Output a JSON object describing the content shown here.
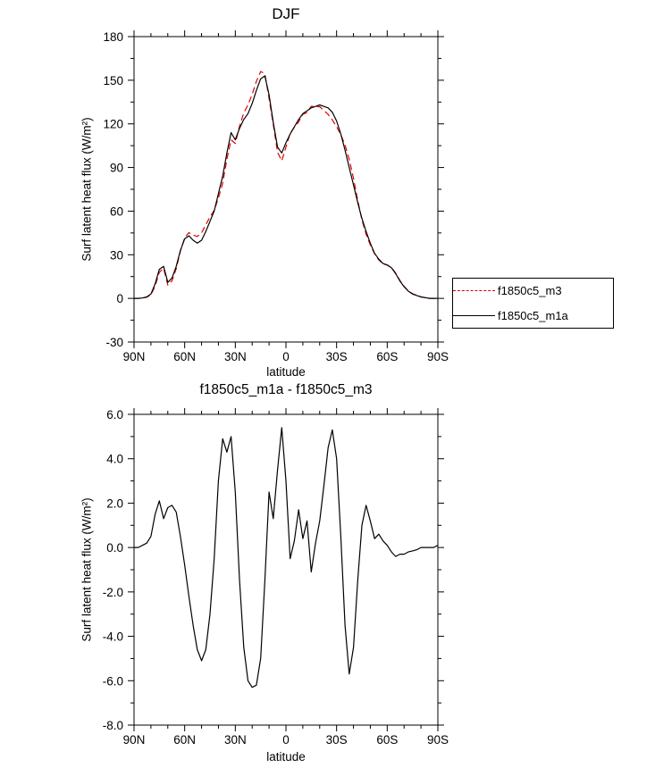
{
  "page": {
    "background": "#ffffff"
  },
  "legend": {
    "items": [
      {
        "label": "f1850c5_m3",
        "color": "#e00000",
        "dash": true
      },
      {
        "label": "f1850c5_m1a",
        "color": "#000000",
        "dash": false
      }
    ]
  },
  "chart_data": [
    {
      "type": "line",
      "title": "DJF",
      "xlabel": "latitude",
      "ylabel": "Surf latent heat flux (W/m²)",
      "xlim": [
        90,
        -90
      ],
      "ylim": [
        -30,
        180
      ],
      "x_ticks": [
        90,
        60,
        30,
        0,
        -30,
        -60,
        -90
      ],
      "x_tick_labels": [
        "90N",
        "60N",
        "30N",
        "0",
        "30S",
        "60S",
        "90S"
      ],
      "x_minor_step": 10,
      "y_ticks": [
        -30,
        0,
        30,
        60,
        90,
        120,
        150,
        180
      ],
      "y_tick_labels": [
        "-30",
        "0",
        "30",
        "60",
        "90",
        "120",
        "150",
        "180"
      ],
      "y_minor_step": 15,
      "x": [
        90,
        87.5,
        85,
        82.5,
        80,
        77.5,
        75,
        72.5,
        70,
        67.5,
        65,
        62.5,
        60,
        57.5,
        55,
        52.5,
        50,
        47.5,
        45,
        42.5,
        40,
        37.5,
        35,
        32.5,
        30,
        27.5,
        25,
        22.5,
        20,
        17.5,
        15,
        12.5,
        10,
        7.5,
        5,
        2.5,
        0,
        -2.5,
        -5,
        -7.5,
        -10,
        -12.5,
        -15,
        -17.5,
        -20,
        -22.5,
        -25,
        -27.5,
        -30,
        -32.5,
        -35,
        -37.5,
        -40,
        -42.5,
        -45,
        -47.5,
        -50,
        -52.5,
        -55,
        -57.5,
        -60,
        -62.5,
        -65,
        -67.5,
        -70,
        -72.5,
        -75,
        -77.5,
        -80,
        -82.5,
        -85,
        -87.5,
        -90
      ],
      "series": [
        {
          "name": "f1850c5_m3",
          "color": "#e00000",
          "dash": "7 4",
          "values": [
            0,
            0,
            0.2,
            0.8,
            2.5,
            8.5,
            17.9,
            20.7,
            9.2,
            12.1,
            20.4,
            32.5,
            41.8,
            45.2,
            43.5,
            42.6,
            45.1,
            50.6,
            56,
            60.5,
            69,
            79.1,
            95.7,
            109,
            106.5,
            118.5,
            127.5,
            133,
            140.3,
            149.2,
            156,
            154.5,
            137.5,
            119.7,
            100.5,
            94.6,
            104,
            113.5,
            117.7,
            121.3,
            126.6,
            127.8,
            132.1,
            131.8,
            131.8,
            129.2,
            126.5,
            122.7,
            118,
            112.5,
            105.5,
            95.7,
            82.5,
            67.5,
            54,
            44.1,
            36.8,
            30.6,
            26.4,
            23.7,
            22.9,
            21.2,
            17.4,
            12.3,
            8.3,
            5.2,
            3.2,
            2.1,
            1,
            0.5,
            0,
            0,
            -0.1
          ]
        },
        {
          "name": "f1850c5_m1a",
          "color": "#000000",
          "dash": "",
          "values": [
            0,
            0,
            0.3,
            1,
            3,
            10,
            20,
            22,
            11,
            14,
            22,
            33,
            41,
            43,
            40,
            38,
            40,
            46,
            53,
            60,
            72,
            84,
            100,
            114,
            109,
            117,
            123,
            127,
            134,
            143,
            151,
            153,
            140,
            121,
            104,
            100,
            107,
            113,
            118,
            123,
            127,
            129,
            131,
            132,
            133,
            132,
            131,
            128,
            122,
            113,
            102,
            90,
            78,
            66,
            55,
            46,
            38,
            31,
            27,
            24,
            23,
            21,
            17,
            12,
            8,
            5,
            3,
            2,
            1,
            0.5,
            0,
            0,
            0
          ]
        }
      ]
    },
    {
      "type": "line",
      "title": "f1850c5_m1a - f1850c5_m3",
      "xlabel": "latitude",
      "ylabel": "Surf latent heat flux (W/m²)",
      "xlim": [
        90,
        -90
      ],
      "ylim": [
        -8,
        6
      ],
      "x_ticks": [
        90,
        60,
        30,
        0,
        -30,
        -60,
        -90
      ],
      "x_tick_labels": [
        "90N",
        "60N",
        "30N",
        "0",
        "30S",
        "60S",
        "90S"
      ],
      "x_minor_step": 10,
      "y_ticks": [
        -8,
        -6,
        -4,
        -2,
        0,
        2,
        4,
        6
      ],
      "y_tick_labels": [
        "-8.0",
        "-6.0",
        "-4.0",
        "-2.0",
        "0.0",
        "2.0",
        "4.0",
        "6.0"
      ],
      "y_minor_step": 1,
      "x": [
        90,
        87.5,
        85,
        82.5,
        80,
        77.5,
        75,
        72.5,
        70,
        67.5,
        65,
        62.5,
        60,
        57.5,
        55,
        52.5,
        50,
        47.5,
        45,
        42.5,
        40,
        37.5,
        35,
        32.5,
        30,
        27.5,
        25,
        22.5,
        20,
        17.5,
        15,
        12.5,
        10,
        7.5,
        5,
        2.5,
        0,
        -2.5,
        -5,
        -7.5,
        -10,
        -12.5,
        -15,
        -17.5,
        -20,
        -22.5,
        -25,
        -27.5,
        -30,
        -32.5,
        -35,
        -37.5,
        -40,
        -42.5,
        -45,
        -47.5,
        -50,
        -52.5,
        -55,
        -57.5,
        -60,
        -62.5,
        -65,
        -67.5,
        -70,
        -72.5,
        -75,
        -77.5,
        -80,
        -82.5,
        -85,
        -87.5,
        -90
      ],
      "series": [
        {
          "name": "f1850c5_m1a - f1850c5_m3",
          "color": "#000000",
          "dash": "",
          "values": [
            0,
            0,
            0.1,
            0.2,
            0.5,
            1.5,
            2.1,
            1.3,
            1.8,
            1.9,
            1.6,
            0.5,
            -0.8,
            -2.2,
            -3.5,
            -4.6,
            -5.1,
            -4.6,
            -3,
            -0.5,
            3,
            4.9,
            4.3,
            5,
            2.5,
            -1.5,
            -4.5,
            -6,
            -6.3,
            -6.2,
            -5,
            -1.5,
            2.5,
            1.3,
            3.5,
            5.4,
            3,
            -0.5,
            0.3,
            1.7,
            0.4,
            1.2,
            -1.1,
            0.2,
            1.2,
            2.8,
            4.5,
            5.3,
            4,
            0.5,
            -3.5,
            -5.7,
            -4.5,
            -1.5,
            1,
            1.9,
            1.2,
            0.4,
            0.6,
            0.3,
            0.1,
            -0.2,
            -0.4,
            -0.3,
            -0.3,
            -0.2,
            -0.15,
            -0.1,
            0,
            0,
            0,
            0,
            0.1
          ]
        }
      ]
    }
  ]
}
